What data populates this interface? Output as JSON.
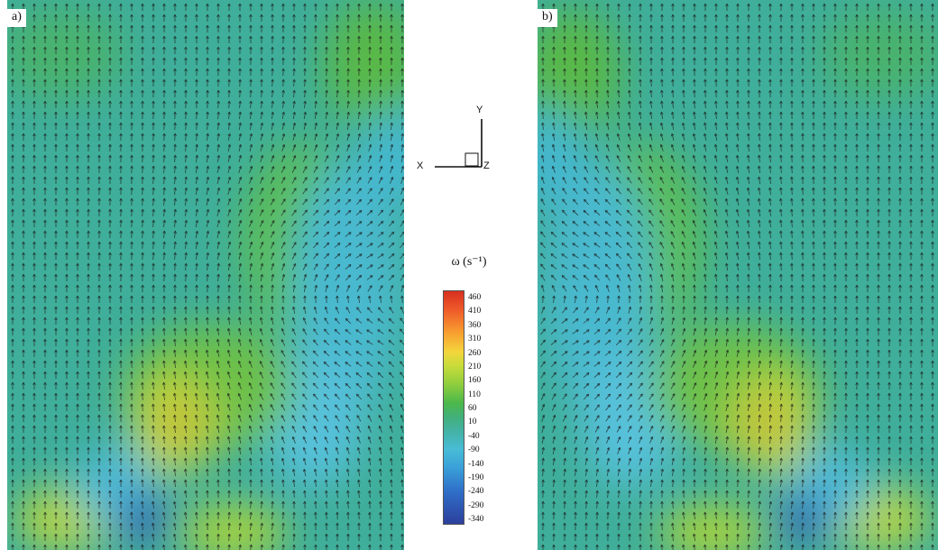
{
  "panels": [
    {
      "label": "a)"
    },
    {
      "label": "b)"
    }
  ],
  "axes": {
    "x": "X",
    "y": "Y",
    "z": "Z"
  },
  "colorbar": {
    "title": "ω (s⁻¹)",
    "ticks": [
      "460",
      "410",
      "360",
      "310",
      "260",
      "210",
      "160",
      "110",
      "60",
      "10",
      "-40",
      "-90",
      "-140",
      "-190",
      "-240",
      "-290",
      "-340"
    ],
    "colors": [
      "#d7301f",
      "#f8a030",
      "#f4d53c",
      "#8fce3e",
      "#42b07a",
      "#48bcd6",
      "#2f6fc8",
      "#2c3f9c"
    ]
  }
}
